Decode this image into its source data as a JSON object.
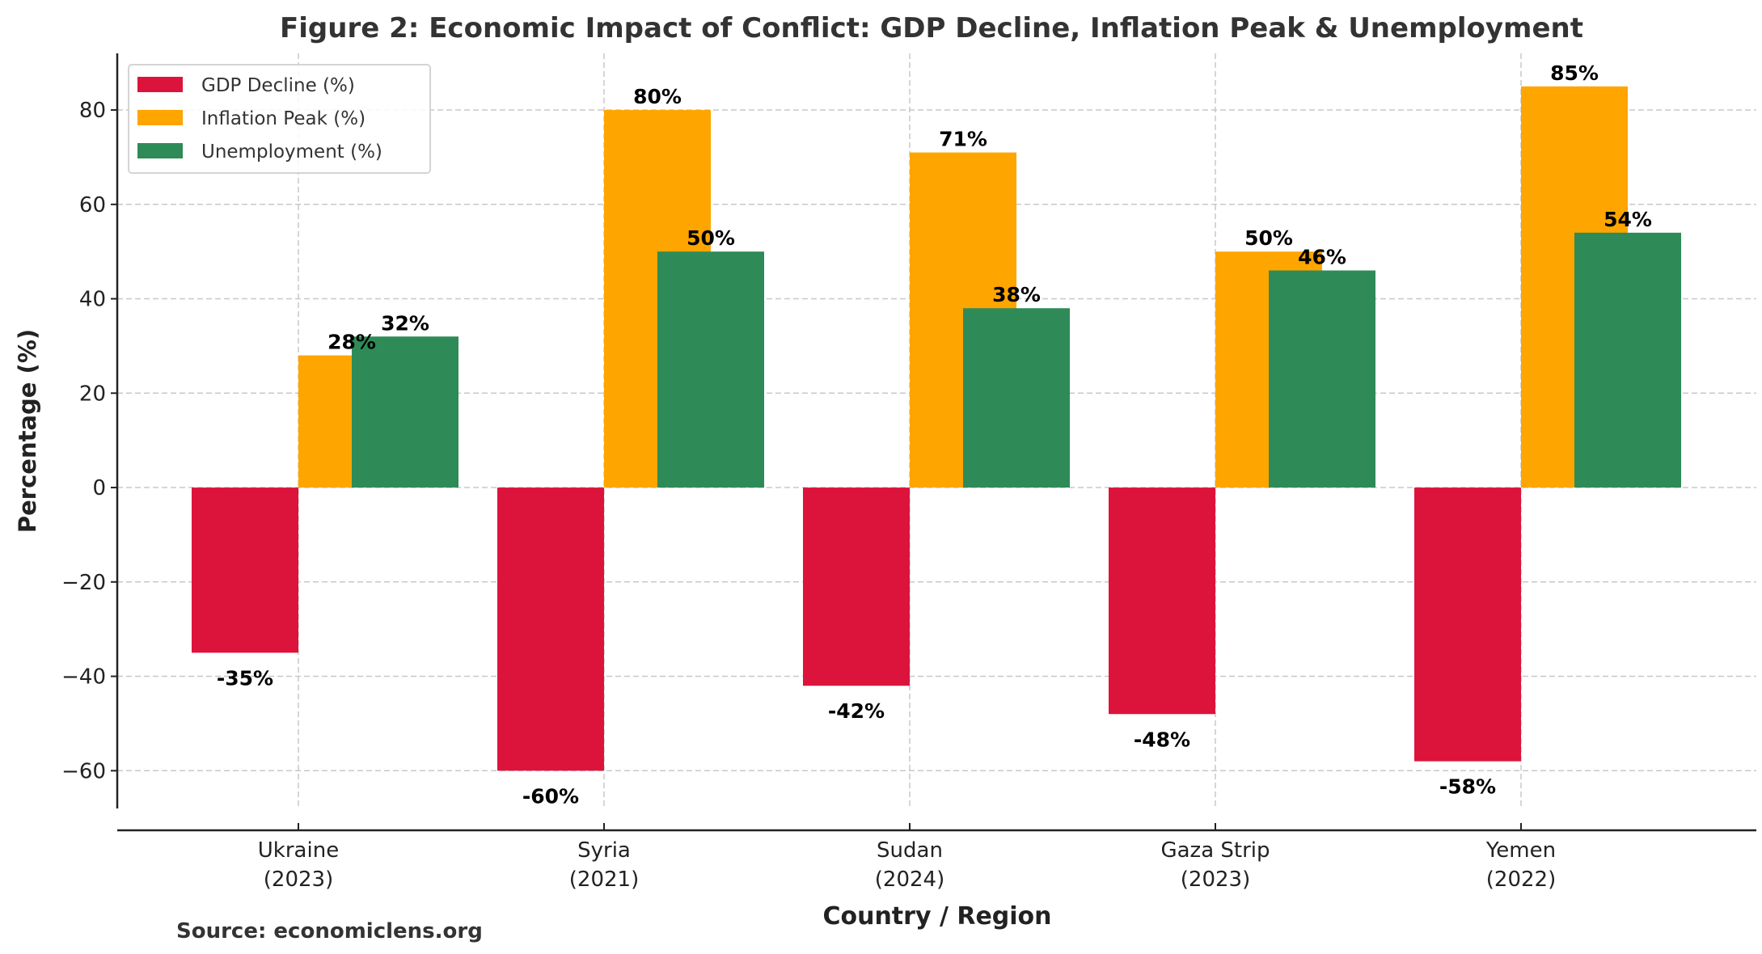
{
  "chart_data": {
    "type": "bar",
    "title": "Figure 2: Economic Impact of Conflict: GDP Decline, Inflation Peak & Unemployment",
    "xlabel": "Country / Region",
    "ylabel": "Percentage (%)",
    "categories": [
      "Ukraine\n(2023)",
      "Syria\n(2021)",
      "Sudan\n(2024)",
      "Gaza Strip\n(2023)",
      "Yemen\n(2022)"
    ],
    "series": [
      {
        "name": "GDP Decline (%)",
        "color": "#DC143C",
        "values": [
          -35,
          -60,
          -42,
          -48,
          -58
        ],
        "labels": [
          "-35%",
          "-60%",
          "-42%",
          "-48%",
          "-58%"
        ]
      },
      {
        "name": "Inflation Peak (%)",
        "color": "#FFA500",
        "values": [
          28,
          80,
          71,
          50,
          85
        ],
        "labels": [
          "28%",
          "80%",
          "71%",
          "50%",
          "85%"
        ]
      },
      {
        "name": "Unemployment (%)",
        "color": "#2E8B57",
        "values": [
          32,
          50,
          38,
          46,
          54
        ],
        "labels": [
          "32%",
          "50%",
          "38%",
          "46%",
          "54%"
        ]
      }
    ],
    "ylim": [
      -68,
      92
    ],
    "yticks": [
      -60,
      -40,
      -20,
      0,
      20,
      40,
      60,
      80
    ],
    "ytick_labels": [
      "−60",
      "−40",
      "−20",
      "0",
      "20",
      "40",
      "60",
      "80"
    ],
    "grid": true,
    "legend_position": "top-left",
    "source": "Source: economiclens.org"
  }
}
